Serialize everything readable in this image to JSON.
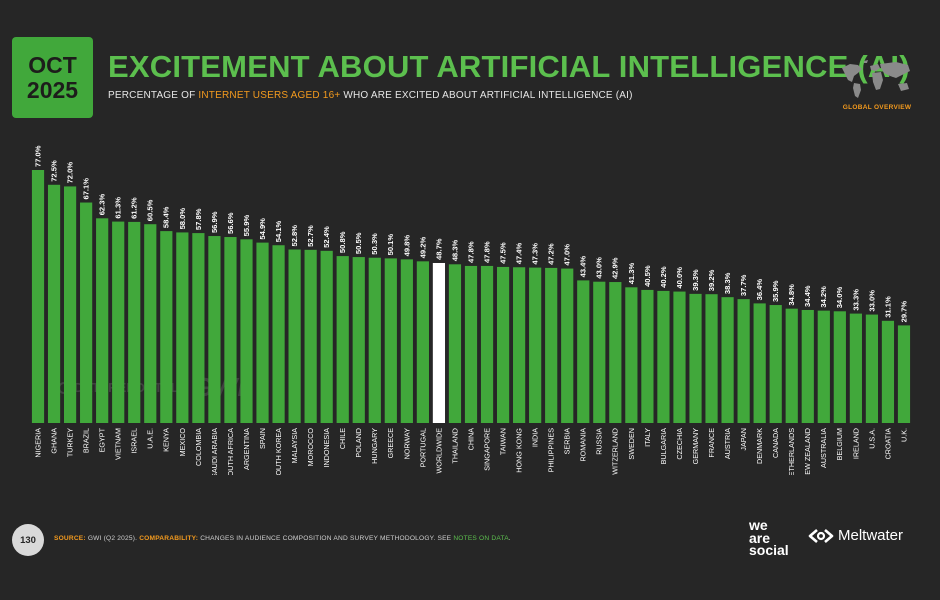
{
  "badge": {
    "month": "OCT",
    "year": "2025"
  },
  "title": "EXCITEMENT ABOUT ARTIFICIAL INTELLIGENCE (AI)",
  "subtitle": {
    "prefix": "PERCENTAGE OF ",
    "highlight": "INTERNET USERS AGED 16+",
    "suffix": " WHO ARE EXCITED ABOUT ARTIFICIAL INTELLIGENCE (AI)"
  },
  "region_label": "GLOBAL OVERVIEW",
  "watermark": {
    "brand1": "DATAREPORTAL",
    "brand2": "GWI."
  },
  "page_number": "130",
  "footer": {
    "source_label": "SOURCE:",
    "source_text": " GWI (Q2 2025). ",
    "comparability_label": "COMPARABILITY:",
    "comparability_text": " CHANGES IN AUDIENCE COMPOSITION AND SURVEY METHODOLOGY. SEE ",
    "notes_link": "NOTES ON DATA",
    "period": "."
  },
  "logos": {
    "was_line1": "we",
    "was_line2": "are",
    "was_line3": "social",
    "meltwater": "Meltwater"
  },
  "colors": {
    "background": "#262626",
    "bar": "#41a83b",
    "bar_highlight": "#ffffff",
    "title": "#5cbf4e",
    "accent": "#f39a1e"
  },
  "chart_data": {
    "type": "bar",
    "title": "EXCITEMENT ABOUT ARTIFICIAL INTELLIGENCE (AI)",
    "xlabel": "",
    "ylabel": "",
    "ylim": [
      0,
      77.0
    ],
    "grid": false,
    "value_suffix": "%",
    "highlight_category": "WORLDWIDE",
    "categories": [
      "NIGERIA",
      "GHANA",
      "TURKEY",
      "BRAZIL",
      "EGYPT",
      "VIETNAM",
      "ISRAEL",
      "U.A.E.",
      "KENYA",
      "MEXICO",
      "COLOMBIA",
      "SAUDI ARABIA",
      "SOUTH AFRICA",
      "ARGENTINA",
      "SPAIN",
      "SOUTH KOREA",
      "MALAYSIA",
      "MOROCCO",
      "INDONESIA",
      "CHILE",
      "POLAND",
      "HUNGARY",
      "GREECE",
      "NORWAY",
      "PORTUGAL",
      "WORLDWIDE",
      "THAILAND",
      "CHINA",
      "SINGAPORE",
      "TAIWAN",
      "HONG KONG",
      "INDIA",
      "PHILIPPINES",
      "SERBIA",
      "ROMANIA",
      "RUSSIA",
      "SWITZERLAND",
      "SWEDEN",
      "ITALY",
      "BULGARIA",
      "CZECHIA",
      "GERMANY",
      "FRANCE",
      "AUSTRIA",
      "JAPAN",
      "DENMARK",
      "CANADA",
      "NETHERLANDS",
      "NEW ZEALAND",
      "AUSTRALIA",
      "BELGIUM",
      "IRELAND",
      "U.S.A.",
      "CROATIA",
      "U.K."
    ],
    "values": [
      77.0,
      72.5,
      72.0,
      67.1,
      62.3,
      61.3,
      61.2,
      60.5,
      58.4,
      58.0,
      57.8,
      56.9,
      56.6,
      55.9,
      54.9,
      54.1,
      52.8,
      52.7,
      52.4,
      50.8,
      50.5,
      50.3,
      50.1,
      49.8,
      49.2,
      48.7,
      48.3,
      47.8,
      47.8,
      47.5,
      47.4,
      47.3,
      47.2,
      47.0,
      43.4,
      43.0,
      42.9,
      41.3,
      40.5,
      40.2,
      40.0,
      39.3,
      39.2,
      38.3,
      37.7,
      36.4,
      35.9,
      34.8,
      34.4,
      34.2,
      34.0,
      33.3,
      33.0,
      31.1,
      29.7
    ]
  }
}
